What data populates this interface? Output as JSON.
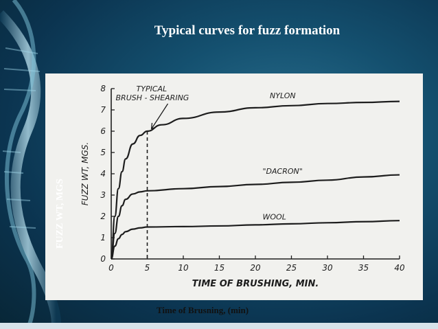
{
  "slide": {
    "title": "Typical curves for fuzz formation",
    "outer_ylabel": "FUZZ WT, MGS",
    "outer_xlabel": "Time of Brusning, (min)"
  },
  "chart_data": {
    "type": "line",
    "title": "",
    "xlabel": "TIME OF BRUSHING, MIN.",
    "ylabel": "FUZZ WT, MGS.",
    "xlim": [
      0,
      40
    ],
    "ylim": [
      0,
      8
    ],
    "xticks": [
      0,
      5,
      10,
      15,
      20,
      25,
      30,
      35,
      40
    ],
    "yticks": [
      0,
      1,
      2,
      3,
      4,
      5,
      6,
      7,
      8
    ],
    "grid": false,
    "annotation": {
      "text_line1": "TYPICAL",
      "text_line2": "BRUSH - SHEARING",
      "x": 5
    },
    "series": [
      {
        "name": "NYLON",
        "x": [
          0,
          0.5,
          1,
          1.5,
          2,
          3,
          4,
          5,
          7,
          10,
          15,
          20,
          25,
          30,
          35,
          40
        ],
        "y": [
          0,
          2.0,
          3.3,
          4.1,
          4.7,
          5.4,
          5.8,
          6.0,
          6.3,
          6.6,
          6.9,
          7.1,
          7.2,
          7.3,
          7.35,
          7.4
        ]
      },
      {
        "name": "\"DACRON\"",
        "x": [
          0,
          0.5,
          1,
          1.5,
          2,
          3,
          4,
          5,
          10,
          15,
          20,
          25,
          30,
          35,
          40
        ],
        "y": [
          0,
          1.2,
          2.0,
          2.5,
          2.8,
          3.05,
          3.15,
          3.2,
          3.3,
          3.4,
          3.5,
          3.6,
          3.7,
          3.85,
          3.95
        ]
      },
      {
        "name": "WOOL",
        "x": [
          0,
          0.5,
          1,
          1.5,
          2,
          3,
          4,
          5,
          10,
          15,
          20,
          25,
          30,
          35,
          40
        ],
        "y": [
          0,
          0.6,
          0.95,
          1.15,
          1.28,
          1.4,
          1.46,
          1.5,
          1.52,
          1.55,
          1.6,
          1.65,
          1.7,
          1.75,
          1.8
        ]
      }
    ]
  },
  "colors": {
    "curve": "#1d1d1d",
    "paper": "#f1f1ee",
    "title_text": "#ffffff"
  }
}
